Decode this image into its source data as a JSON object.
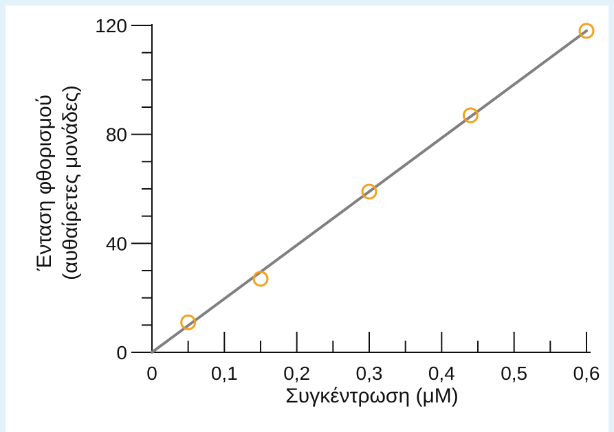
{
  "chart_data": {
    "type": "scatter",
    "xlabel": "Συγκέντρωση (μΜ)",
    "ylabel_line1": "Ένταση φθορισμού",
    "ylabel_line2": "(αυθαίρετες μονάδες)",
    "xlim": [
      0,
      0.6
    ],
    "ylim": [
      0,
      120
    ],
    "x_ticks": [
      0,
      0.1,
      0.2,
      0.3,
      0.4,
      0.5,
      0.6
    ],
    "x_tick_labels": [
      "0",
      "0,1",
      "0,2",
      "0,3",
      "0,4",
      "0,5",
      "0,6"
    ],
    "x_minor_ticks": [
      0.05,
      0.15,
      0.25,
      0.35,
      0.45,
      0.55
    ],
    "y_ticks": [
      0,
      40,
      80,
      120
    ],
    "y_tick_labels": [
      "0",
      "40",
      "80",
      "120"
    ],
    "y_minor_ticks": [
      10,
      20,
      30,
      50,
      60,
      70,
      90,
      100,
      110
    ],
    "grid": false,
    "points": [
      {
        "x": 0.05,
        "y": 11
      },
      {
        "x": 0.15,
        "y": 27
      },
      {
        "x": 0.3,
        "y": 59
      },
      {
        "x": 0.44,
        "y": 87
      },
      {
        "x": 0.6,
        "y": 118
      }
    ],
    "fit_line": {
      "x": [
        0,
        0.6
      ],
      "y": [
        0,
        118
      ]
    },
    "colors": {
      "points": "#f5a01a",
      "line": "#808080",
      "axes": "#111111",
      "frame": "#e3f1f8"
    }
  }
}
